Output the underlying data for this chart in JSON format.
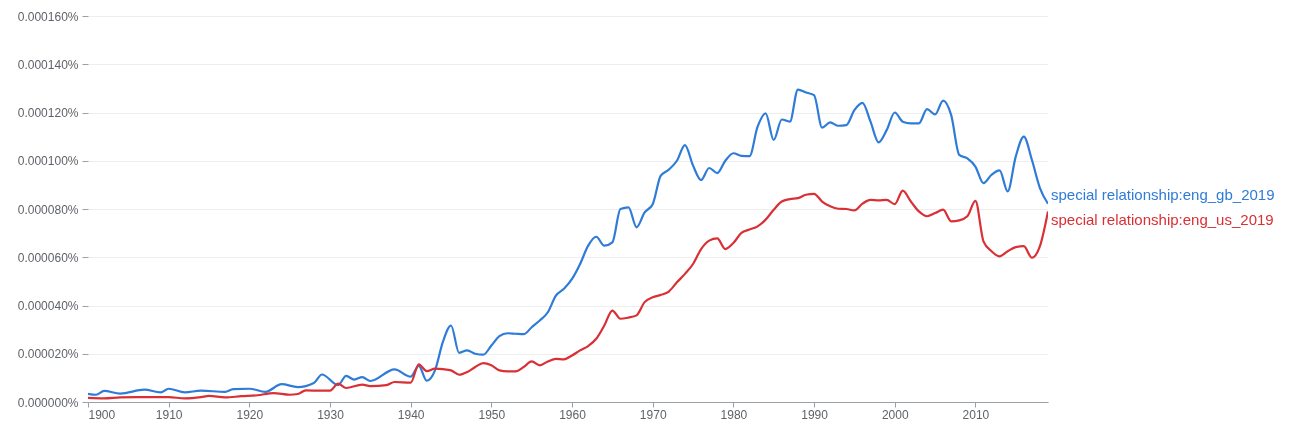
{
  "chart_data": {
    "type": "line",
    "xlim": [
      1900,
      2019
    ],
    "xticks": [
      1900,
      1910,
      1920,
      1930,
      1940,
      1950,
      1960,
      1970,
      1980,
      1990,
      2000,
      2010
    ],
    "ylim": [
      0,
      0.00016
    ],
    "yticks": [
      {
        "value": 0,
        "label": "0.000000%"
      },
      {
        "value": 2e-05,
        "label": "0.000020%"
      },
      {
        "value": 4e-05,
        "label": "0.000040%"
      },
      {
        "value": 6e-05,
        "label": "0.000060%"
      },
      {
        "value": 8e-05,
        "label": "0.000080%"
      },
      {
        "value": 0.0001,
        "label": "0.000100%"
      },
      {
        "value": 0.00012,
        "label": "0.000120%"
      },
      {
        "value": 0.00014,
        "label": "0.000140%"
      },
      {
        "value": 0.00016,
        "label": "0.000160%"
      }
    ],
    "grid": "y",
    "marker": "none",
    "line_style": "solid",
    "series": [
      {
        "name": "special relationship:eng_gb_2019",
        "color": "#2f7bd8",
        "x": [
          1900,
          1901,
          1902,
          1904,
          1907,
          1909,
          1910,
          1912,
          1914,
          1917,
          1918,
          1920,
          1922,
          1924,
          1926,
          1928,
          1929,
          1931,
          1932,
          1933,
          1934,
          1935,
          1938,
          1940,
          1941,
          1942,
          1943,
          1944,
          1945,
          1946,
          1947,
          1948,
          1949,
          1950,
          1951,
          1952,
          1953,
          1954,
          1955,
          1956,
          1957,
          1958,
          1959,
          1960,
          1961,
          1962,
          1963,
          1964,
          1965,
          1966,
          1967,
          1968,
          1969,
          1970,
          1971,
          1972,
          1973,
          1974,
          1975,
          1976,
          1977,
          1978,
          1979,
          1980,
          1981,
          1982,
          1983,
          1984,
          1985,
          1986,
          1987,
          1988,
          1989,
          1990,
          1991,
          1992,
          1993,
          1994,
          1995,
          1996,
          1997,
          1998,
          1999,
          2000,
          2001,
          2002,
          2003,
          2004,
          2005,
          2006,
          2007,
          2008,
          2009,
          2010,
          2011,
          2012,
          2013,
          2014,
          2015,
          2016,
          2017,
          2018,
          2019
        ],
        "values": [
          3.4e-06,
          3e-06,
          4.6e-06,
          3.5e-06,
          5.1e-06,
          4e-06,
          5.5e-06,
          4e-06,
          4.7e-06,
          4.2e-06,
          5.3e-06,
          5.5e-06,
          4.2e-06,
          7.4e-06,
          6.2e-06,
          7.9e-06,
          1.14e-05,
          7e-06,
          1.08e-05,
          9.3e-06,
          1.03e-05,
          8.7e-06,
          1.35e-05,
          1.05e-05,
          1.5e-05,
          8.8e-06,
          1.3e-05,
          2.5e-05,
          3.17e-05,
          2.04e-05,
          2.14e-05,
          2e-05,
          1.96e-05,
          2.34e-05,
          2.73e-05,
          2.85e-05,
          2.83e-05,
          2.81e-05,
          3.1e-05,
          3.38e-05,
          3.72e-05,
          4.41e-05,
          4.69e-05,
          5.1e-05,
          5.72e-05,
          6.48e-05,
          6.85e-05,
          6.48e-05,
          6.62e-05,
          8e-05,
          8.07e-05,
          7.24e-05,
          7.86e-05,
          8.2e-05,
          9.38e-05,
          9.63e-05,
          0.0001,
          0.0001065,
          9.8e-05,
          9.2e-05,
          9.7e-05,
          9.49e-05,
          0.0001,
          0.0001031,
          0.000102,
          0.0001019,
          0.0001141,
          0.0001196,
          0.0001086,
          0.0001171,
          0.0001162,
          0.0001295,
          0.0001283,
          0.0001272,
          0.0001137,
          0.0001159,
          0.0001145,
          0.0001148,
          0.000121,
          0.000124,
          0.0001162,
          0.0001076,
          0.0001127,
          0.00012,
          0.0001162,
          0.0001155,
          0.0001155,
          0.0001214,
          0.0001192,
          0.0001249,
          0.0001189,
          0.0001024,
          0.000101,
          9.76e-05,
          9.07e-05,
          9.42e-05,
          9.6e-05,
          8.73e-05,
          0.0001017,
          0.00011,
          0.0001004,
          8.87e-05,
          8.22e-05
        ]
      },
      {
        "name": "special relationship:eng_us_2019",
        "color": "#d93035",
        "x": [
          1900,
          1902,
          1904,
          1906,
          1908,
          1910,
          1912,
          1914,
          1915,
          1917,
          1919,
          1921,
          1923,
          1925,
          1926,
          1927,
          1929,
          1930,
          1931,
          1932,
          1934,
          1935,
          1937,
          1938,
          1940,
          1941,
          1942,
          1943,
          1944,
          1945,
          1946,
          1947,
          1948,
          1949,
          1950,
          1951,
          1952,
          1953,
          1954,
          1955,
          1956,
          1957,
          1958,
          1959,
          1960,
          1961,
          1962,
          1963,
          1964,
          1965,
          1966,
          1967,
          1968,
          1969,
          1970,
          1971,
          1972,
          1973,
          1974,
          1975,
          1976,
          1977,
          1978,
          1979,
          1980,
          1981,
          1982,
          1983,
          1984,
          1985,
          1986,
          1987,
          1988,
          1989,
          1990,
          1991,
          1992,
          1993,
          1994,
          1995,
          1996,
          1997,
          1998,
          1999,
          2000,
          2001,
          2002,
          2003,
          2004,
          2005,
          2006,
          2007,
          2008,
          2009,
          2010,
          2011,
          2012,
          2013,
          2014,
          2015,
          2016,
          2017,
          2018,
          2019
        ],
        "values": [
          1.7e-06,
          1.5e-06,
          1.9e-06,
          2e-06,
          2e-06,
          2e-06,
          1.5e-06,
          2e-06,
          2.5e-06,
          1.9e-06,
          2.4e-06,
          2.8e-06,
          3.7e-06,
          3e-06,
          3.3e-06,
          4.8e-06,
          4.7e-06,
          4.7e-06,
          7.6e-06,
          5.8e-06,
          7.2e-06,
          6.6e-06,
          7e-06,
          8.3e-06,
          8e-06,
          1.56e-05,
          1.28e-05,
          1.38e-05,
          1.36e-05,
          1.31e-05,
          1.13e-05,
          1.24e-05,
          1.45e-05,
          1.61e-05,
          1.52e-05,
          1.31e-05,
          1.27e-05,
          1.27e-05,
          1.45e-05,
          1.68e-05,
          1.52e-05,
          1.68e-05,
          1.79e-05,
          1.77e-05,
          1.93e-05,
          2.14e-05,
          2.32e-05,
          2.62e-05,
          3.17e-05,
          3.79e-05,
          3.45e-05,
          3.5e-05,
          3.59e-05,
          4.14e-05,
          4.34e-05,
          4.44e-05,
          4.58e-05,
          4.96e-05,
          5.31e-05,
          5.72e-05,
          6.34e-05,
          6.69e-05,
          6.78e-05,
          6.34e-05,
          6.59e-05,
          7.01e-05,
          7.15e-05,
          7.28e-05,
          7.56e-05,
          7.97e-05,
          8.31e-05,
          8.41e-05,
          8.45e-05,
          8.59e-05,
          8.63e-05,
          8.31e-05,
          8.11e-05,
          8.01e-05,
          8e-05,
          7.94e-05,
          8.22e-05,
          8.38e-05,
          8.36e-05,
          8.38e-05,
          8.2e-05,
          8.76e-05,
          8.31e-05,
          7.9e-05,
          7.7e-05,
          7.83e-05,
          7.97e-05,
          7.49e-05,
          7.53e-05,
          7.7e-05,
          8.34e-05,
          6.66e-05,
          6.25e-05,
          6.04e-05,
          6.25e-05,
          6.42e-05,
          6.46e-05,
          5.98e-05,
          6.46e-05,
          7.9e-05
        ]
      }
    ]
  }
}
